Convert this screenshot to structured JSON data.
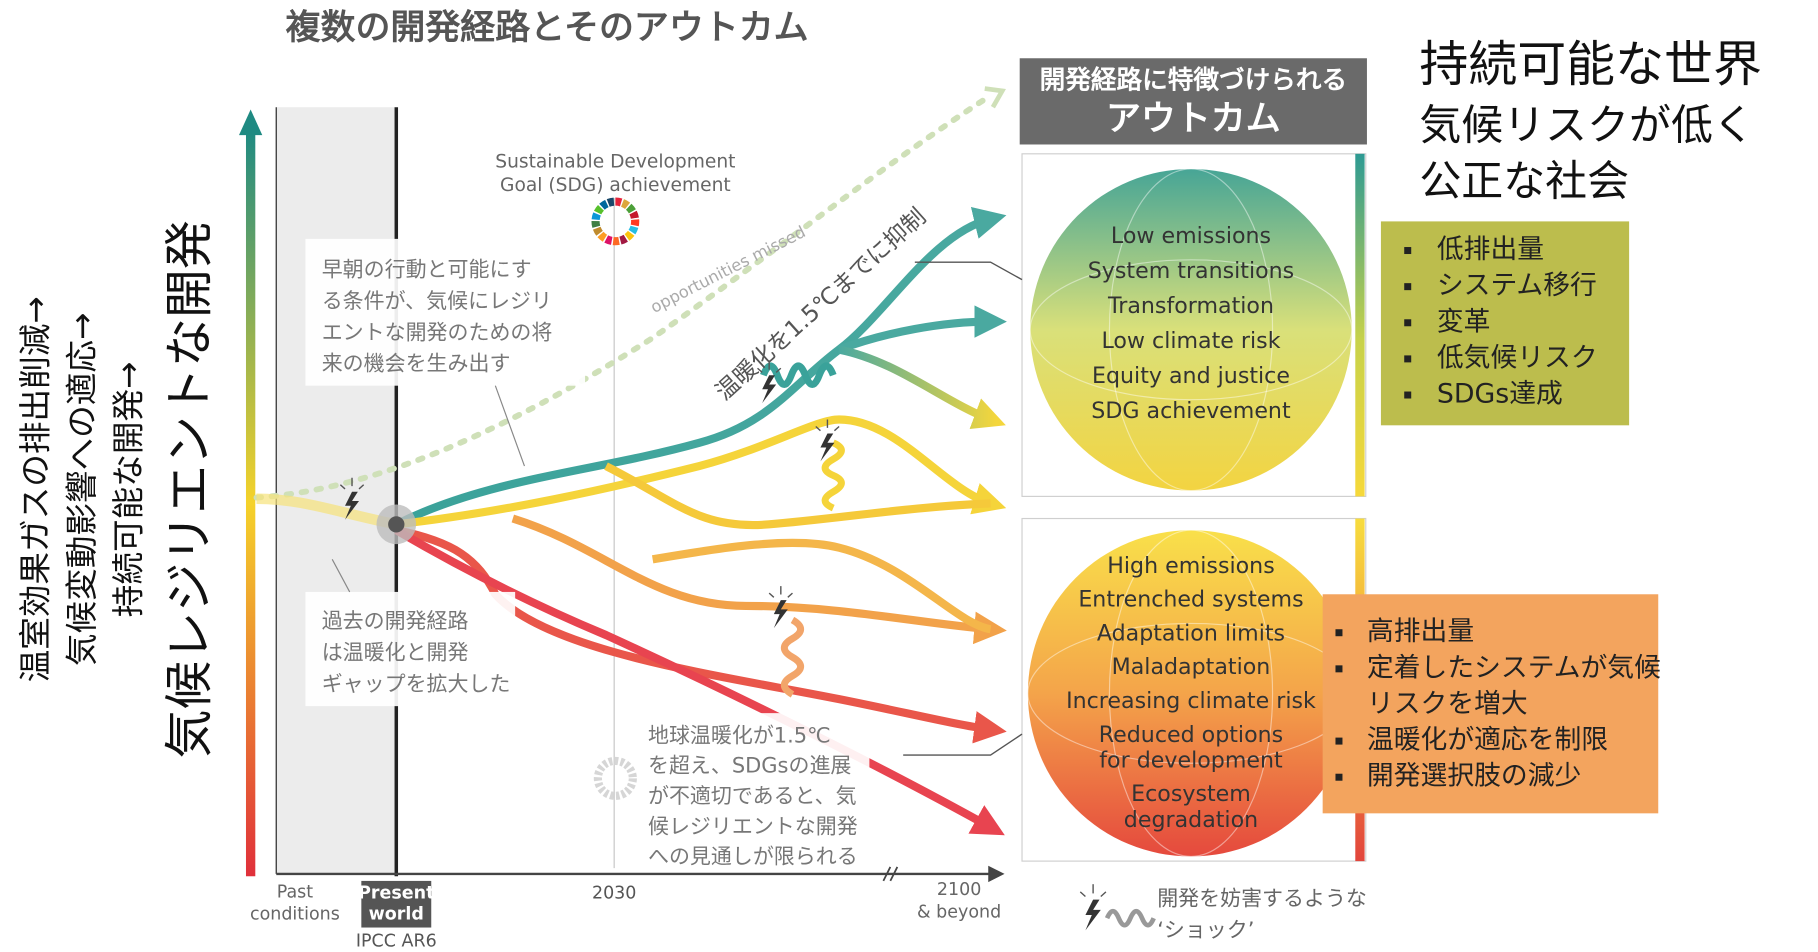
{
  "title": "複数の開発経路とそのアウトカム",
  "axis_labels": {
    "left": [
      "温室効果ガスの排出削減→",
      "気候変動影響への適応→",
      "持続可能な開発→"
    ],
    "main": "気候レジリエントな開発"
  },
  "summary": {
    "heading": "持続可能な世界",
    "lines": [
      "気候リスクが低く",
      "公正な社会"
    ]
  },
  "outcomes_header": [
    "開発経路に特徴づけられる",
    "アウトカム"
  ],
  "positive_outcomes": {
    "items": [
      "Low emissions",
      "System transitions",
      "Transformation",
      "Low climate risk",
      "Equity and justice",
      "SDG achievement"
    ],
    "ja_items": [
      "低排出量",
      "システム移行",
      "変革",
      "低気候リスク",
      "SDGs達成"
    ]
  },
  "negative_outcomes": {
    "items": [
      [
        "High emissions"
      ],
      [
        "Entrenched systems"
      ],
      [
        "Adaptation limits"
      ],
      [
        "Maladaptation"
      ],
      [
        "Increasing climate risk"
      ],
      [
        "Reduced options",
        "for development"
      ],
      [
        "Ecosystem",
        "degradation"
      ]
    ],
    "ja_items": [
      [
        "高排出量"
      ],
      [
        "定着したシステムが気候",
        "リスクを増大"
      ],
      [
        "温暖化が適応を制限"
      ],
      [
        "開発選択肢の減少"
      ]
    ]
  },
  "annotations": {
    "sdg": [
      "Sustainable Development",
      "Goal (SDG) achievement"
    ],
    "missed": "opportunities missed",
    "limit": "温暖化を1.5℃までに抑制",
    "early_action": [
      "早朝の行動と可能にす",
      "る条件が、気候にレジリ",
      "エントな開発のための将",
      "来の機会を生み出す"
    ],
    "past_pathways": [
      "過去の開発経路",
      "は温暖化と開発",
      "ギャップを拡大した"
    ],
    "warning": [
      "地球温暖化が1.5℃",
      "を超え、SDGsの進展",
      "が不適切であると、気",
      "候レジリエントな開発",
      "への見通しが限られる"
    ]
  },
  "timeline": {
    "past": [
      "Past",
      "conditions"
    ],
    "present": [
      "Present",
      "world"
    ],
    "report": "IPCC AR6",
    "mid": "2030",
    "end": [
      "2100",
      "& beyond"
    ]
  },
  "legend": {
    "shock": [
      "開発を妨害するような",
      "‘ショック’"
    ]
  }
}
